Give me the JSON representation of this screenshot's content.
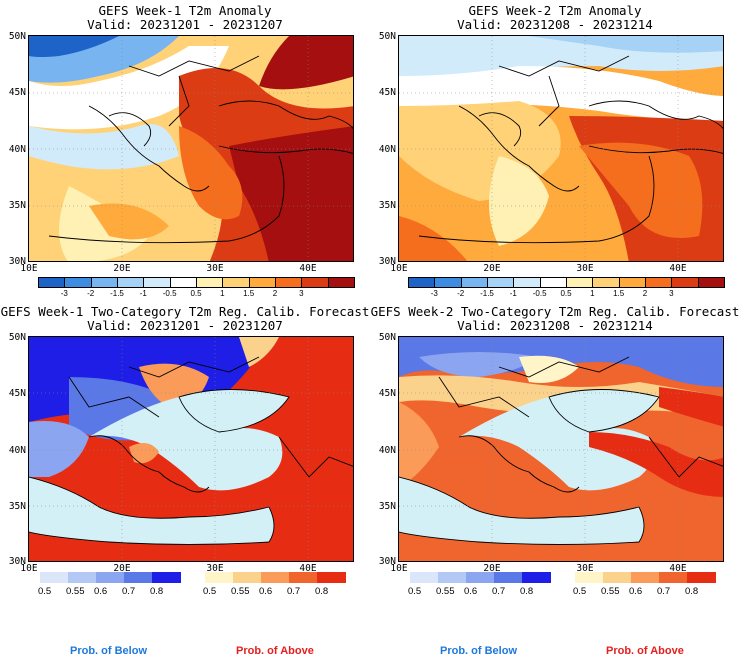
{
  "panels": [
    {
      "title_line1": "GEFS Week-1 T2m Anomaly",
      "title_line2": "Valid: 20231201 - 20231207"
    },
    {
      "title_line1": "GEFS Week-2 T2m Anomaly",
      "title_line2": "Valid: 20231208 - 20231214"
    },
    {
      "title_line1": "GEFS Week-1 Two-Category T2m Reg. Calib. Forecast",
      "title_line2": "Valid: 20231201 - 20231207"
    },
    {
      "title_line1": "GEFS Week-2 Two-Category T2m Reg. Calib. Forecast",
      "title_line2": "Valid: 20231208 - 20231214"
    }
  ],
  "axes": {
    "lat_labels": [
      "50N",
      "45N",
      "40N",
      "35N",
      "30N"
    ],
    "lon_labels": [
      "10E",
      "20E",
      "30E",
      "40E"
    ]
  },
  "anomaly_colorbar": {
    "labels": [
      "-3",
      "-2",
      "-1.5",
      "-1",
      "-0.5",
      "0.5",
      "1",
      "1.5",
      "2",
      "3"
    ],
    "colors": [
      "#1e64c8",
      "#3c8ce1",
      "#78b4f0",
      "#a5d2f5",
      "#d2ebfa",
      "#ffffff",
      "#fff0b4",
      "#ffd278",
      "#ffaa3c",
      "#f56e1e",
      "#dc3c14",
      "#a50f0f"
    ]
  },
  "prob_below_colorbar": {
    "labels": [
      "0.5",
      "0.55",
      "0.6",
      "0.7",
      "0.8"
    ],
    "colors": [
      "#dce6fa",
      "#b4c8f5",
      "#8ca5f0",
      "#5a78e6",
      "#1e1ee6"
    ]
  },
  "prob_above_colorbar": {
    "labels": [
      "0.5",
      "0.55",
      "0.6",
      "0.7",
      "0.8"
    ],
    "colors": [
      "#fff5c8",
      "#fbd28c",
      "#fa9b5a",
      "#f0642d",
      "#e62d14"
    ]
  },
  "footer": {
    "prob_below": "Prob. of Below",
    "prob_above": "Prob. of Above",
    "below_color": "#1e78dc",
    "above_color": "#e61e1e"
  },
  "colors": {
    "sea_light_blue": "#d2f0f5",
    "coast": "#000000"
  }
}
